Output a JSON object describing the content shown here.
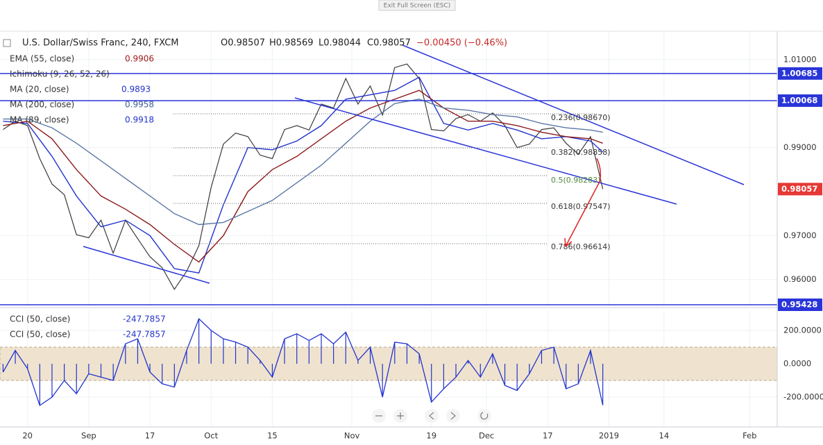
{
  "banner": "Exit Full Screen (ESC)",
  "header": {
    "symbol": "U.S. Dollar/Swiss Franc, 240, FXCM",
    "open": "O0.98507",
    "high": "H0.98569",
    "low": "L0.98044",
    "close": "C0.98057",
    "change": "−0.00450 (−0.46%)"
  },
  "legends": [
    {
      "name": "EMA (55, close)",
      "value": "0.9906"
    },
    {
      "name": "Ichimoku (9, 26, 52, 26)"
    },
    {
      "name": "MA (20, close)",
      "value": "0.9893"
    },
    {
      "name": "MA (200, close)",
      "value": "0.9958"
    },
    {
      "name": "MA (89, close)",
      "value": "0.9918"
    }
  ],
  "fib_levels": [
    "0.236(0.98670)",
    "0.382(0.98858)",
    "0.5(0.98283)",
    "0.618(0.97547)",
    "0.786(0.96614)"
  ],
  "chart_data": [
    {
      "type": "line",
      "xlim": [
        -4.5,
        122.5
      ],
      "ylim": [
        0.95412,
        1.01645
      ],
      "yticks": [
        {
          "value": 0.96,
          "label": "0.96000"
        },
        {
          "value": 0.97,
          "label": "0.97000"
        },
        {
          "value": 0.99,
          "label": "0.99000"
        },
        {
          "value": 1.01,
          "label": "1.01000"
        }
      ],
      "hlines": [
        {
          "value": 1.00685,
          "label": "1.00685"
        },
        {
          "value": 1.00068,
          "label": "1.00068"
        },
        {
          "value": 0.95428,
          "label": "0.95428"
        }
      ],
      "last_price": {
        "value": 0.98057,
        "label": "0.98057"
      },
      "series": [
        {
          "color": "#3a3a3a",
          "x": [
            -4,
            -2,
            0,
            2,
            4,
            6,
            8,
            10,
            12,
            14,
            16,
            18,
            20,
            22,
            24,
            26,
            28,
            30,
            32,
            34,
            36,
            38,
            40,
            42,
            44,
            46,
            48,
            50,
            52,
            54,
            56,
            58,
            60,
            62,
            64,
            66,
            68,
            70,
            72,
            74,
            76,
            78,
            80,
            82,
            84,
            86,
            88,
            90,
            92,
            94
          ],
          "values": [
            0.9941,
            0.996,
            0.995,
            0.9875,
            0.9817,
            0.9793,
            0.9702,
            0.9695,
            0.9735,
            0.966,
            0.9735,
            0.9693,
            0.9652,
            0.9627,
            0.9578,
            0.9619,
            0.9677,
            0.981,
            0.9908,
            0.9933,
            0.9925,
            0.9883,
            0.9875,
            0.9941,
            0.995,
            0.994,
            0.9999,
            0.999,
            1.0057,
            0.9999,
            1.004,
            0.9974,
            1.0082,
            1.009,
            1.0057,
            0.9941,
            0.9938,
            0.9966,
            0.9975,
            0.996,
            0.9979,
            0.995,
            0.99,
            0.9908,
            0.9941,
            0.9945,
            0.991,
            0.9885,
            0.9925,
            0.98057
          ]
        },
        {
          "color": "#2233cc",
          "x": [
            -4,
            0,
            4,
            8,
            12,
            16,
            20,
            24,
            28,
            32,
            36,
            40,
            44,
            48,
            52,
            56,
            60,
            64,
            68,
            72,
            76,
            80,
            84,
            88,
            92,
            94
          ],
          "values": [
            0.996,
            0.9955,
            0.988,
            0.979,
            0.972,
            0.9735,
            0.97,
            0.9625,
            0.9615,
            0.977,
            0.99,
            0.9895,
            0.9915,
            0.995,
            1.001,
            1.002,
            1.003,
            1.006,
            0.9955,
            0.994,
            0.9955,
            0.994,
            0.992,
            0.9925,
            0.9915,
            0.989
          ]
        },
        {
          "color": "#8b1a1a",
          "x": [
            -4,
            0,
            4,
            8,
            12,
            16,
            20,
            24,
            28,
            32,
            36,
            40,
            44,
            48,
            52,
            56,
            60,
            64,
            68,
            72,
            76,
            80,
            84,
            88,
            92,
            94
          ],
          "values": [
            0.995,
            0.996,
            0.992,
            0.985,
            0.979,
            0.976,
            0.9725,
            0.968,
            0.964,
            0.97,
            0.98,
            0.985,
            0.988,
            0.992,
            0.996,
            0.999,
            1.001,
            1.003,
            0.999,
            0.996,
            0.996,
            0.995,
            0.9935,
            0.9925,
            0.992,
            0.991
          ]
        },
        {
          "color": "#5b78a6",
          "x": [
            -4,
            0,
            4,
            8,
            12,
            16,
            20,
            24,
            28,
            32,
            36,
            40,
            44,
            48,
            52,
            56,
            60,
            64,
            68,
            72,
            76,
            80,
            84,
            88,
            92,
            94
          ],
          "values": [
            0.9965,
            0.9965,
            0.9945,
            0.991,
            0.987,
            0.983,
            0.979,
            0.975,
            0.9725,
            0.973,
            0.9755,
            0.978,
            0.982,
            0.986,
            0.991,
            0.996,
            1.0,
            1.001,
            0.999,
            0.9985,
            0.9975,
            0.997,
            0.9955,
            0.9945,
            0.994,
            0.9935
          ]
        }
      ]
    },
    {
      "type": "bar",
      "xlim": [
        -4.5,
        122.5
      ],
      "ylim": [
        -379,
        321
      ],
      "band": [
        -100,
        100
      ],
      "yticks": [
        {
          "value": 200,
          "label": "200.0000"
        },
        {
          "value": 0,
          "label": "0.0000"
        },
        {
          "value": -200,
          "label": "-200.0000"
        }
      ],
      "xticks": [
        {
          "value": 0,
          "label": "20"
        },
        {
          "value": 10,
          "label": "Sep"
        },
        {
          "value": 20,
          "label": "17"
        },
        {
          "value": 30,
          "label": "Oct"
        },
        {
          "value": 40,
          "label": "15"
        },
        {
          "value": 53,
          "label": "Nov"
        },
        {
          "value": 66,
          "label": "19"
        },
        {
          "value": 75,
          "label": "Dec"
        },
        {
          "value": 85,
          "label": "17"
        },
        {
          "value": 95,
          "label": "2019"
        },
        {
          "value": 104,
          "label": "14"
        },
        {
          "value": 118,
          "label": "Feb"
        }
      ],
      "series": [
        {
          "name": "CCI (50, close)",
          "value_label": "-247.7857",
          "color": "#2233cc",
          "x": [
            -4,
            -2,
            0,
            2,
            4,
            6,
            8,
            10,
            12,
            14,
            16,
            18,
            20,
            22,
            24,
            26,
            28,
            30,
            32,
            34,
            36,
            38,
            40,
            42,
            44,
            46,
            48,
            50,
            52,
            54,
            56,
            58,
            60,
            62,
            64,
            66,
            68,
            70,
            72,
            74,
            76,
            78,
            80,
            82,
            84,
            86,
            88,
            90,
            92,
            94
          ],
          "values": [
            -50,
            80,
            -30,
            -250,
            -200,
            -100,
            -180,
            -60,
            -80,
            -100,
            120,
            150,
            -50,
            -120,
            -140,
            80,
            270,
            200,
            150,
            130,
            100,
            20,
            -80,
            150,
            180,
            140,
            180,
            120,
            190,
            20,
            100,
            -200,
            130,
            120,
            60,
            -230,
            -150,
            -80,
            20,
            -80,
            60,
            -130,
            -160,
            -60,
            80,
            100,
            -150,
            -120,
            80,
            -248
          ]
        }
      ]
    }
  ]
}
